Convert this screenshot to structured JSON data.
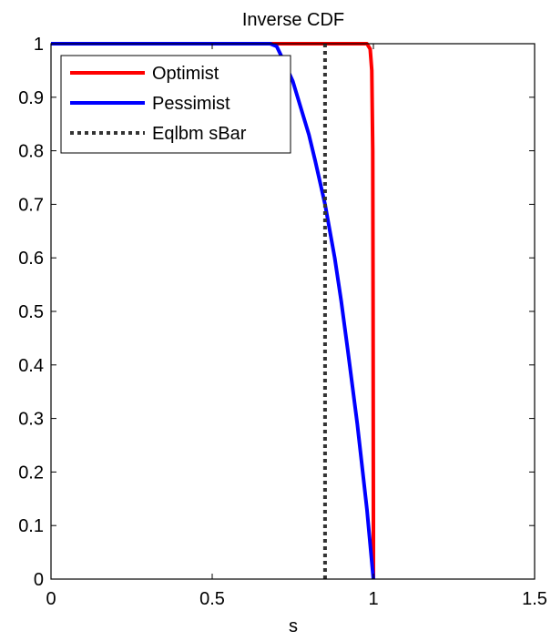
{
  "chart_data": {
    "type": "line",
    "title": "Inverse CDF",
    "xlabel": "s",
    "ylabel": "",
    "xlim": [
      0,
      1.5
    ],
    "ylim": [
      0,
      1
    ],
    "xticks": [
      0,
      0.5,
      1,
      1.5
    ],
    "xtick_labels": [
      "0",
      "0.5",
      "1",
      "1.5"
    ],
    "yticks": [
      0,
      0.1,
      0.2,
      0.3,
      0.4,
      0.5,
      0.6,
      0.7,
      0.8,
      0.9,
      1
    ],
    "ytick_labels": [
      "0",
      "0.1",
      "0.2",
      "0.3",
      "0.4",
      "0.5",
      "0.6",
      "0.7",
      "0.8",
      "0.9",
      "1"
    ],
    "grid": false,
    "legend_position": "top-left",
    "series": [
      {
        "name": "Optimist",
        "color": "#ff0000",
        "style": "solid",
        "x": [
          0,
          0.98,
          0.99,
          0.995,
          0.998,
          0.999,
          1.0,
          1.0
        ],
        "y": [
          1,
          1,
          0.99,
          0.95,
          0.8,
          0.5,
          0.1,
          0
        ]
      },
      {
        "name": "Pessimist",
        "color": "#0000ff",
        "style": "solid",
        "x": [
          0,
          0.68,
          0.7,
          0.72,
          0.75,
          0.78,
          0.8,
          0.82,
          0.85,
          0.88,
          0.9,
          0.92,
          0.95,
          0.98,
          1.0
        ],
        "y": [
          1,
          1,
          0.995,
          0.97,
          0.93,
          0.87,
          0.83,
          0.78,
          0.7,
          0.6,
          0.52,
          0.43,
          0.29,
          0.13,
          0
        ]
      },
      {
        "name": "Eqlbm sBar",
        "color": "#333333",
        "style": "dotted",
        "x": [
          0.85,
          0.85
        ],
        "y": [
          0,
          1
        ]
      }
    ]
  }
}
